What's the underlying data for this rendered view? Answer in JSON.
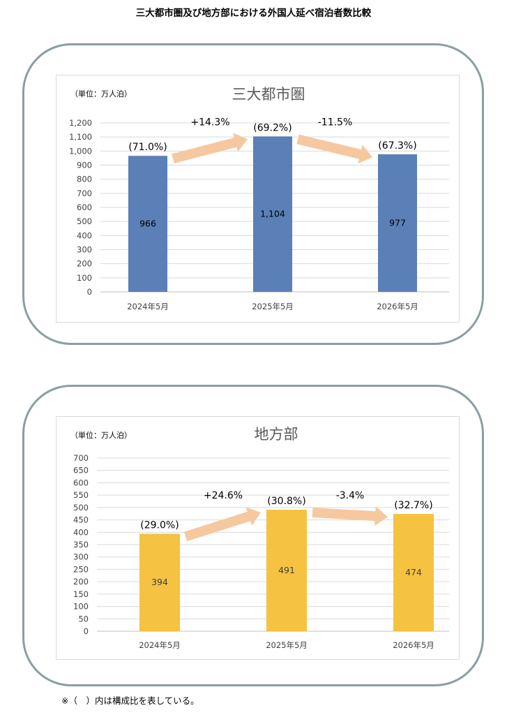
{
  "page_title": "三大都市圏及び地方部における外国人延べ宿泊者数比較",
  "footnote": "※（　）内は構成比を表している。",
  "chart_data": [
    {
      "type": "bar",
      "title": "三大都市圏",
      "unit_label": "（単位：万人泊）",
      "categories": [
        "2024年5月",
        "2025年5月",
        "2026年5月"
      ],
      "values": [
        966,
        1104,
        977
      ],
      "value_labels": [
        "966",
        "1,104",
        "977"
      ],
      "shares": [
        "(71.0%)",
        "(69.2%)",
        "(67.3%)"
      ],
      "growth": [
        "+14.3%",
        "-11.5%"
      ],
      "ylim": [
        0,
        1200
      ],
      "yticks": [
        0,
        100,
        200,
        300,
        400,
        500,
        600,
        700,
        800,
        900,
        1000,
        1100,
        1200
      ],
      "ytick_labels": [
        "0",
        "100",
        "200",
        "300",
        "400",
        "500",
        "600",
        "700",
        "800",
        "900",
        "1,000",
        "1,100",
        "1,200"
      ],
      "grid": true,
      "bar_color": "#5b7fb7",
      "arrow_color": "#f5c8a0",
      "value_label_color": "#000000"
    },
    {
      "type": "bar",
      "title": "地方部",
      "unit_label": "（単位：万人泊）",
      "categories": [
        "2024年5月",
        "2025年5月",
        "2026年5月"
      ],
      "values": [
        394,
        491,
        474
      ],
      "value_labels": [
        "394",
        "491",
        "474"
      ],
      "shares": [
        "(29.0%)",
        "(30.8%)",
        "(32.7%)"
      ],
      "growth": [
        "+24.6%",
        "-3.4%"
      ],
      "ylim": [
        0,
        700
      ],
      "yticks": [
        0,
        50,
        100,
        150,
        200,
        250,
        300,
        350,
        400,
        450,
        500,
        550,
        600,
        650,
        700
      ],
      "ytick_labels": [
        "0",
        "50",
        "100",
        "150",
        "200",
        "250",
        "300",
        "350",
        "400",
        "450",
        "500",
        "550",
        "600",
        "650",
        "700"
      ],
      "grid": true,
      "bar_color": "#f5c242",
      "arrow_color": "#f5c8a0",
      "value_label_color": "#404040"
    }
  ]
}
